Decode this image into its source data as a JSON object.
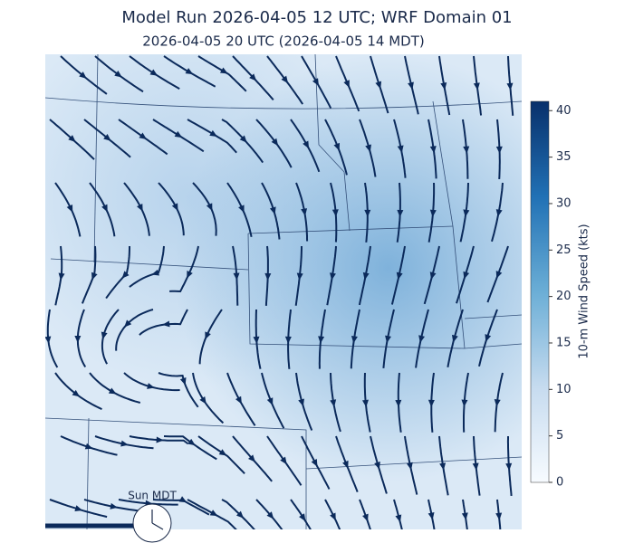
{
  "header": {
    "title": "Model Run 2026-04-05 12 UTC; WRF Domain 01",
    "subtitle": "2026-04-05 20 UTC  (2026-04-05 14 MDT)"
  },
  "colorbar": {
    "label": "10-m Wind Speed (kts)",
    "lim": [
      0,
      41
    ],
    "ticks": [
      0,
      5,
      10,
      15,
      20,
      25,
      30,
      35,
      40
    ]
  },
  "clock": {
    "label": "Sun MDT"
  }
}
